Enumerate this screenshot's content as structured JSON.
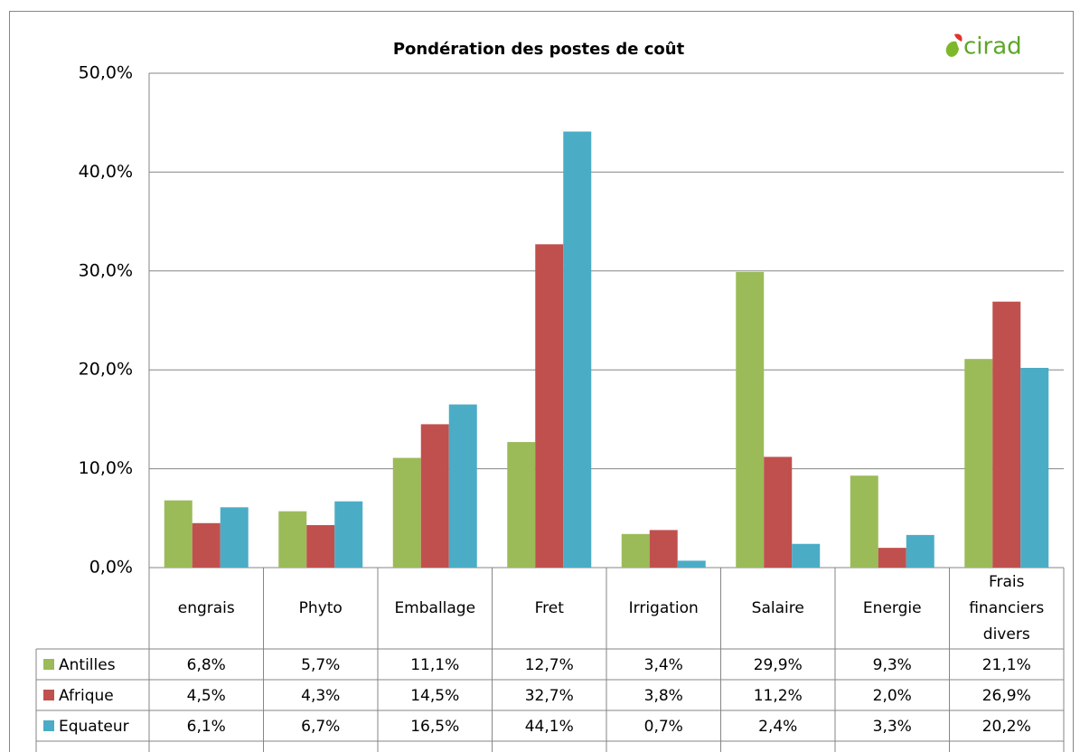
{
  "chart_data": {
    "type": "bar",
    "title": "Pondération des postes de coût",
    "logo": "cirad",
    "categories": [
      "engrais",
      "Phyto",
      "Emballage",
      "Fret",
      "Irrigation",
      "Salaire",
      "Energie",
      "Frais financiers divers"
    ],
    "series": [
      {
        "name": "Antilles",
        "color": "#9bbb59",
        "values": [
          6.8,
          5.7,
          11.1,
          12.7,
          3.4,
          29.9,
          9.3,
          21.1
        ],
        "value_labels": [
          "6,8%",
          "5,7%",
          "11,1%",
          "12,7%",
          "3,4%",
          "29,9%",
          "9,3%",
          "21,1%"
        ]
      },
      {
        "name": "Afrique",
        "color": "#c0504d",
        "values": [
          4.5,
          4.3,
          14.5,
          32.7,
          3.8,
          11.2,
          2.0,
          26.9
        ],
        "value_labels": [
          "4,5%",
          "4,3%",
          "14,5%",
          "32,7%",
          "3,8%",
          "11,2%",
          "2,0%",
          "26,9%"
        ]
      },
      {
        "name": "Equateur",
        "color": "#4bacc6",
        "values": [
          6.1,
          6.7,
          16.5,
          44.1,
          0.7,
          2.4,
          3.3,
          20.2
        ],
        "value_labels": [
          "6,1%",
          "6,7%",
          "16,5%",
          "44,1%",
          "0,7%",
          "2,4%",
          "3,3%",
          "20,2%"
        ]
      }
    ],
    "ylim": [
      0,
      50
    ],
    "yticks": [
      {
        "value": 0,
        "label": "0,0%"
      },
      {
        "value": 10,
        "label": "10,0%"
      },
      {
        "value": 20,
        "label": "20,0%"
      },
      {
        "value": 30,
        "label": "30,0%"
      },
      {
        "value": 40,
        "label": "40,0%"
      },
      {
        "value": 50,
        "label": "50,0%"
      }
    ],
    "grid": true
  }
}
